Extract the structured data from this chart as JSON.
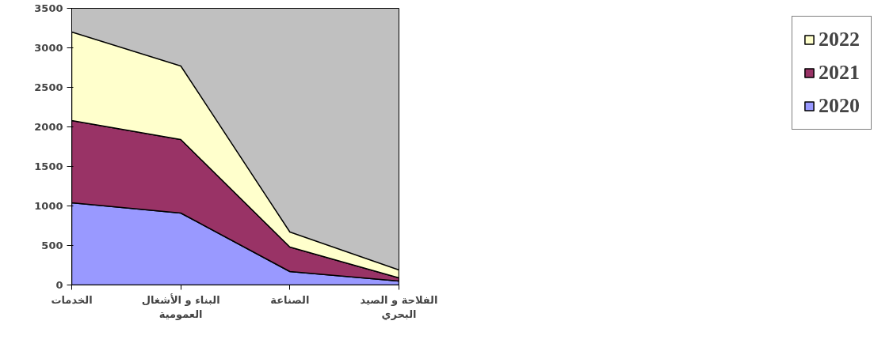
{
  "chart_data": {
    "type": "area",
    "stacked": true,
    "categories": [
      "الخدمات",
      "البناء و الأشغال العمومية",
      "الصناعة",
      "الفلاحة و الصيد البحري"
    ],
    "series": [
      {
        "name": "2020",
        "color": "#9999ff",
        "values": [
          1040,
          910,
          170,
          50
        ]
      },
      {
        "name": "2021",
        "color": "#993366",
        "values": [
          1040,
          930,
          310,
          40
        ]
      },
      {
        "name": "2022",
        "color": "#ffffcc",
        "values": [
          1120,
          930,
          190,
          100
        ]
      }
    ],
    "ylim": [
      0,
      3500
    ],
    "yticks": [
      0,
      500,
      1000,
      1500,
      2000,
      2500,
      3000,
      3500
    ],
    "grid": false,
    "legend": "right"
  }
}
